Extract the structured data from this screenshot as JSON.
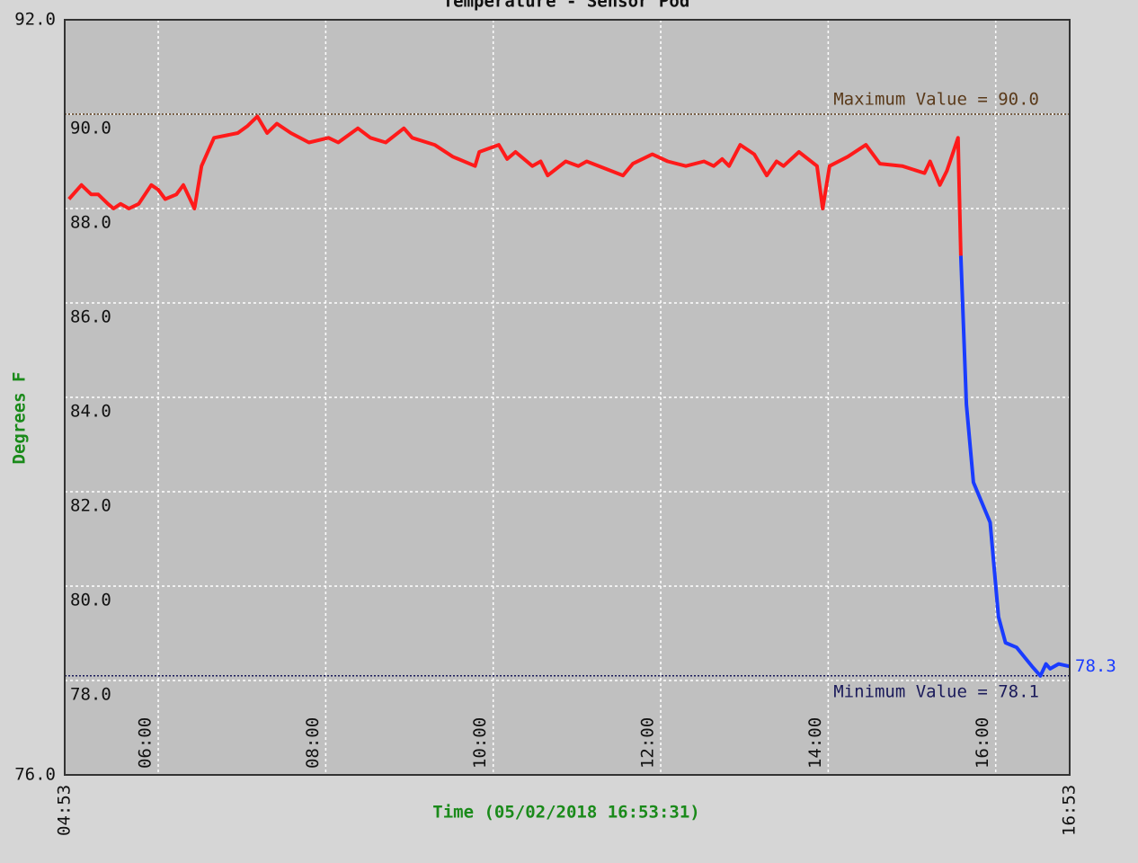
{
  "chart_data": {
    "type": "line",
    "title": "Temperature - Sensor Pod",
    "xlabel": "Time (05/02/2018 16:53:31)",
    "ylabel": "Degrees F",
    "x": [
      296,
      305,
      312,
      317,
      324,
      328,
      333,
      339,
      346,
      355,
      360,
      365,
      373,
      378,
      386,
      391,
      400,
      417,
      424,
      431,
      438,
      445,
      455,
      468,
      482,
      489,
      503,
      512,
      523,
      536,
      542,
      558,
      571,
      587,
      590,
      604,
      610,
      616,
      628,
      634,
      639,
      652,
      661,
      667,
      680,
      693,
      700,
      714,
      725,
      738,
      751,
      758,
      764,
      769,
      777,
      787,
      796,
      803,
      808,
      819,
      832,
      836,
      841,
      854,
      867,
      877,
      893,
      909,
      913,
      920,
      925,
      933,
      935,
      939,
      944,
      956,
      962,
      967,
      975,
      986,
      992,
      996,
      999,
      1005,
      1013
    ],
    "series": [
      {
        "color": "#ff1a1a",
        "values": [
          88.2,
          88.5,
          88.3,
          88.3,
          88.1,
          88.0,
          88.1,
          88.0,
          88.1,
          88.5,
          88.4,
          88.2,
          88.3,
          88.5,
          88.0,
          88.9,
          89.5,
          89.6,
          89.75,
          89.95,
          89.6,
          89.8,
          89.6,
          89.4,
          89.5,
          89.4,
          89.7,
          89.5,
          89.4,
          89.7,
          89.5,
          89.35,
          89.1,
          88.9,
          89.2,
          89.35,
          89.05,
          89.2,
          88.9,
          89.0,
          88.7,
          89.0,
          88.9,
          89.0,
          88.85,
          88.7,
          88.95,
          89.15,
          89.0,
          88.9,
          89.0,
          88.9,
          89.05,
          88.9,
          89.35,
          89.15,
          88.7,
          89.0,
          88.9,
          89.2,
          88.9,
          88.0,
          88.9,
          89.1,
          89.35,
          88.95,
          88.9,
          88.75,
          89.0,
          88.5,
          88.8,
          89.5,
          87.0,
          null,
          null,
          null,
          null,
          null,
          null,
          null,
          null,
          null,
          null,
          null,
          null
        ]
      },
      {
        "color": "#1a3cff",
        "values": [
          null,
          null,
          null,
          null,
          null,
          null,
          null,
          null,
          null,
          null,
          null,
          null,
          null,
          null,
          null,
          null,
          null,
          null,
          null,
          null,
          null,
          null,
          null,
          null,
          null,
          null,
          null,
          null,
          null,
          null,
          null,
          null,
          null,
          null,
          null,
          null,
          null,
          null,
          null,
          null,
          null,
          null,
          null,
          null,
          null,
          null,
          null,
          null,
          null,
          null,
          null,
          null,
          null,
          null,
          null,
          null,
          null,
          null,
          null,
          null,
          null,
          null,
          null,
          null,
          null,
          null,
          null,
          null,
          null,
          null,
          null,
          null,
          87.0,
          83.85,
          82.2,
          81.35,
          79.35,
          78.8,
          78.7,
          78.3,
          78.1,
          78.35,
          78.25,
          78.35,
          78.3
        ]
      }
    ],
    "xlim": [
      293,
      1013
    ],
    "xticks": [
      {
        "value": 293,
        "label": "04:53"
      },
      {
        "value": 360,
        "label": "06:00"
      },
      {
        "value": 480,
        "label": "08:00"
      },
      {
        "value": 600,
        "label": "10:00"
      },
      {
        "value": 720,
        "label": "12:00"
      },
      {
        "value": 840,
        "label": "14:00"
      },
      {
        "value": 960,
        "label": "16:00"
      },
      {
        "value": 1013,
        "label": "16:53"
      }
    ],
    "ylim": [
      76,
      92
    ],
    "yticks": [
      {
        "value": 76,
        "label": "76.0"
      },
      {
        "value": 78,
        "label": "78.0"
      },
      {
        "value": 80,
        "label": "80.0"
      },
      {
        "value": 82,
        "label": "82.0"
      },
      {
        "value": 84,
        "label": "84.0"
      },
      {
        "value": 86,
        "label": "86.0"
      },
      {
        "value": 88,
        "label": "88.0"
      },
      {
        "value": 90,
        "label": "90.0"
      },
      {
        "value": 92,
        "label": "92.0"
      }
    ],
    "grid": true,
    "max_line": {
      "value": 90.0,
      "label": "Maximum Value = 90.0",
      "color": "#5a3a1a"
    },
    "min_line": {
      "value": 78.1,
      "label": "Minimum Value = 78.1",
      "color": "#1a1a5a"
    },
    "last_value": {
      "value": 78.3,
      "color": "#1a3cff"
    }
  }
}
